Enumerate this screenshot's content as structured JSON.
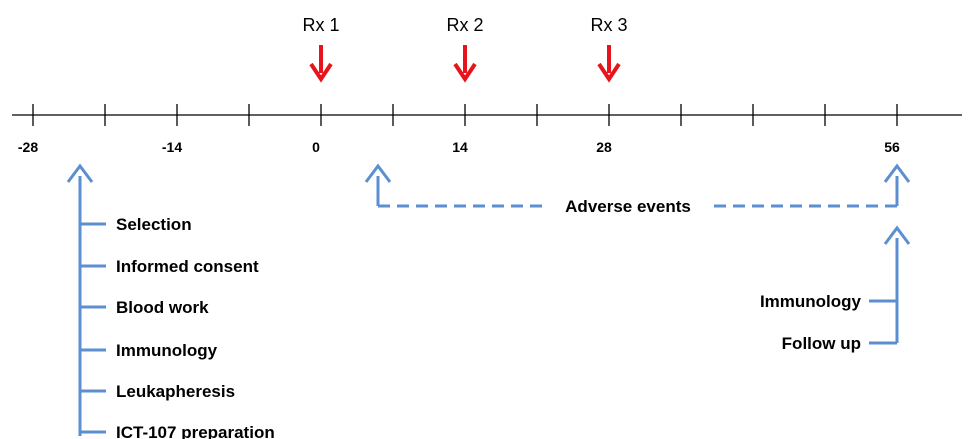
{
  "timeline": {
    "ticks": [
      {
        "value": -28,
        "label": "-28"
      },
      {
        "value": -21,
        "label": ""
      },
      {
        "value": -14,
        "label": "-14"
      },
      {
        "value": -7,
        "label": ""
      },
      {
        "value": 0,
        "label": "0"
      },
      {
        "value": 7,
        "label": ""
      },
      {
        "value": 14,
        "label": "14"
      },
      {
        "value": 21,
        "label": ""
      },
      {
        "value": 28,
        "label": "28"
      },
      {
        "value": 35,
        "label": ""
      },
      {
        "value": 42,
        "label": ""
      },
      {
        "value": 49,
        "label": ""
      },
      {
        "value": 56,
        "label": "56"
      }
    ]
  },
  "treatments": [
    {
      "label": "Rx 1",
      "day": 0
    },
    {
      "label": "Rx 2",
      "day": 14
    },
    {
      "label": "Rx 3",
      "day": 28
    }
  ],
  "screening": {
    "items": [
      "Selection",
      "Informed consent",
      "Blood work",
      "Immunology",
      "Leukapheresis",
      "ICT-107 preparation"
    ]
  },
  "adverse_events": {
    "label": "Adverse events"
  },
  "followup": {
    "items": [
      "Immunology",
      "Follow up"
    ]
  },
  "colors": {
    "arrow_red": "#e8141b",
    "bracket_blue": "#5b8fd0",
    "axis": "#000000"
  }
}
